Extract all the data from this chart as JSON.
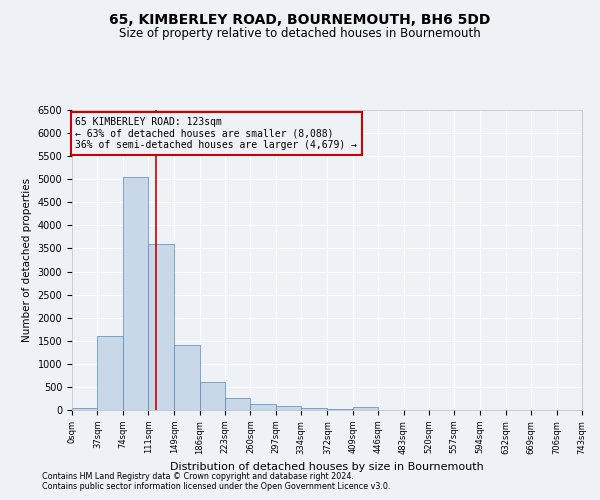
{
  "title": "65, KIMBERLEY ROAD, BOURNEMOUTH, BH6 5DD",
  "subtitle": "Size of property relative to detached houses in Bournemouth",
  "xlabel": "Distribution of detached houses by size in Bournemouth",
  "ylabel": "Number of detached properties",
  "footer_line1": "Contains HM Land Registry data © Crown copyright and database right 2024.",
  "footer_line2": "Contains public sector information licensed under the Open Government Licence v3.0.",
  "bar_edges": [
    0,
    37,
    74,
    111,
    149,
    186,
    223,
    260,
    297,
    334,
    372,
    409,
    446,
    483,
    520,
    557,
    594,
    632,
    669,
    706,
    743
  ],
  "bar_heights": [
    50,
    1600,
    5050,
    3600,
    1400,
    600,
    270,
    130,
    90,
    50,
    30,
    70,
    0,
    0,
    0,
    0,
    0,
    0,
    0,
    0
  ],
  "bar_color": "#c8d8e8",
  "bar_edge_color": "#5588bb",
  "property_line_x": 123,
  "property_line_color": "#cc0000",
  "annotation_text": "65 KIMBERLEY ROAD: 123sqm\n← 63% of detached houses are smaller (8,088)\n36% of semi-detached houses are larger (4,679) →",
  "ylim": [
    0,
    6500
  ],
  "yticks": [
    0,
    500,
    1000,
    1500,
    2000,
    2500,
    3000,
    3500,
    4000,
    4500,
    5000,
    5500,
    6000,
    6500
  ],
  "bg_color": "#eef2f7",
  "grid_color": "#ffffff",
  "title_fontsize": 10,
  "subtitle_fontsize": 8.5
}
